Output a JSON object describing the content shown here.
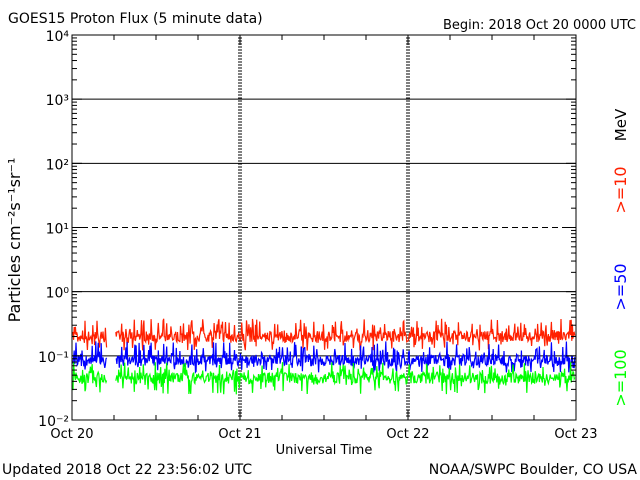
{
  "header": {
    "title": "GOES15 Proton Flux (5 minute data)",
    "begin": "Begin: 2018 Oct 20 0000 UTC"
  },
  "footer": {
    "updated": "Updated 2018 Oct 22 23:56:02 UTC",
    "credit": "NOAA/SWPC Boulder, CO USA"
  },
  "chart_data": {
    "type": "line",
    "title": "GOES15 Proton Flux (5 minute data)",
    "xlabel": "Universal Time",
    "ylabel": "Particles cm⁻²s⁻¹sr⁻¹",
    "yscale": "log",
    "ylim": [
      0.01,
      10000
    ],
    "y_ticks": [
      {
        "value": 0.01,
        "label": "10⁻²"
      },
      {
        "value": 0.1,
        "label": "10⁻¹"
      },
      {
        "value": 1,
        "label": "10⁰"
      },
      {
        "value": 10,
        "label": "10¹"
      },
      {
        "value": 100,
        "label": "10²"
      },
      {
        "value": 1000,
        "label": "10³"
      },
      {
        "value": 10000,
        "label": "10⁴"
      }
    ],
    "xlim": [
      "2018-10-20 00:00",
      "2018-10-23 00:00"
    ],
    "x_ticks": [
      {
        "value": "2018-10-20 00:00",
        "label": "Oct 20"
      },
      {
        "value": "2018-10-21 00:00",
        "label": "Oct 21"
      },
      {
        "value": "2018-10-22 00:00",
        "label": "Oct 22"
      },
      {
        "value": "2018-10-23 00:00",
        "label": "Oct 23"
      }
    ],
    "grid": {
      "solid_y": [
        0.1,
        1,
        100,
        1000
      ],
      "dashed_y": [
        10
      ]
    },
    "legend_placement": "right, vertical",
    "legend_unit": "MeV",
    "data_gap": [
      "2018-10-20 05:00",
      "2018-10-20 06:15"
    ],
    "series": [
      {
        "name": ">=10",
        "color": "#ff2000",
        "typical_value": 0.2,
        "range": [
          0.12,
          0.38
        ]
      },
      {
        "name": ">=50",
        "color": "#0000ff",
        "typical_value": 0.085,
        "range": [
          0.055,
          0.17
        ]
      },
      {
        "name": ">=100",
        "color": "#00ff00",
        "typical_value": 0.045,
        "range": [
          0.025,
          0.08
        ]
      }
    ]
  }
}
